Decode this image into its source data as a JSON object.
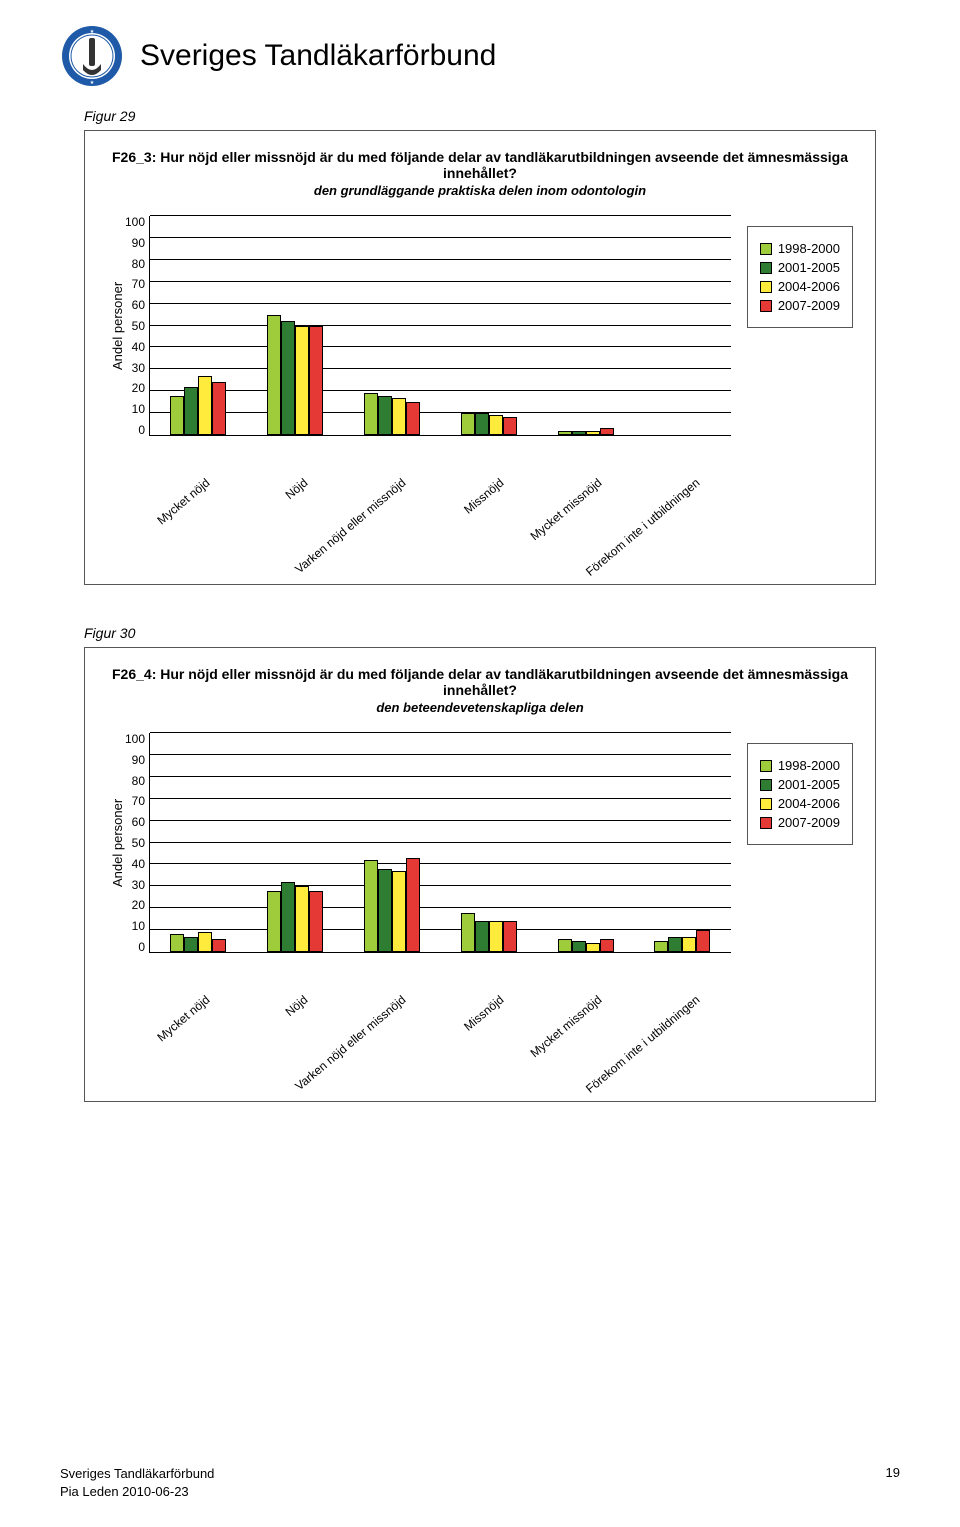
{
  "org_name": "Sveriges Tandläkarförbund",
  "colors": {
    "series": [
      "#9fcc3b",
      "#2e7d32",
      "#ffeb3b",
      "#e53935"
    ],
    "logo_outer": "#1e5aa8",
    "logo_inner": "#ffffff",
    "border": "#555555"
  },
  "y_axis": {
    "label": "Andel personer",
    "max": 100,
    "ticks": [
      100,
      90,
      80,
      70,
      60,
      50,
      40,
      30,
      20,
      10,
      0
    ]
  },
  "x_categories": [
    "Mycket nöjd",
    "Nöjd",
    "Varken nöjd eller missnöjd",
    "Missnöjd",
    "Mycket missnöjd",
    "Förekom inte i utbildningen"
  ],
  "series_labels": [
    "1998-2000",
    "2001-2005",
    "2004-2006",
    "2007-2009"
  ],
  "figures": [
    {
      "label": "Figur 29",
      "title": "F26_3: Hur nöjd eller missnöjd är du med följande delar av tandläkarutbildningen avseende det ämnesmässiga innehållet?",
      "subtitle": "den grundläggande praktiska delen inom odontologin",
      "data": [
        [
          18,
          22,
          27,
          24
        ],
        [
          55,
          52,
          50,
          50
        ],
        [
          19,
          18,
          17,
          15
        ],
        [
          10,
          10,
          9,
          8
        ],
        [
          2,
          2,
          2,
          3
        ],
        [
          0,
          0,
          0,
          0
        ]
      ]
    },
    {
      "label": "Figur 30",
      "title": "F26_4: Hur nöjd eller missnöjd är du med följande delar av tandläkarutbildningen avseende det ämnesmässiga innehållet?",
      "subtitle": "den beteendevetenskapliga delen",
      "data": [
        [
          8,
          7,
          9,
          6
        ],
        [
          28,
          32,
          30,
          28
        ],
        [
          42,
          38,
          37,
          43
        ],
        [
          18,
          14,
          14,
          14
        ],
        [
          6,
          5,
          4,
          6
        ],
        [
          5,
          7,
          7,
          10
        ]
      ]
    }
  ],
  "footer": {
    "org": "Sveriges Tandläkarförbund",
    "author": "Pia Leden 2010-06-23",
    "page": "19"
  }
}
